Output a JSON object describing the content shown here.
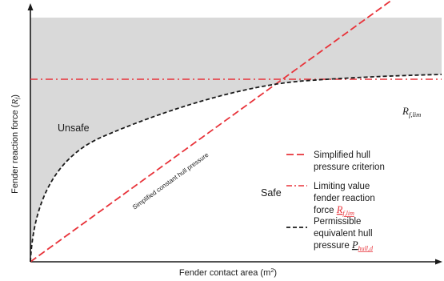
{
  "figure": {
    "x_axis_label": "Fender contact area (m",
    "x_axis_label_sup": "2",
    "x_axis_label_end": ")",
    "y_axis_label": "Fender reaction force (",
    "y_axis_label_var": "R",
    "y_axis_label_sub": "f",
    "y_axis_label_end": ")",
    "region_unsafe": "Unsafe",
    "region_safe": "Safe",
    "diagonal_annotation": "Simplified constant hull pressure",
    "limit_marker_var": "R",
    "limit_marker_sub": "f,lim",
    "legend": [
      {
        "line1": "Simplified hull",
        "line2": "pressure criterion",
        "line3": "",
        "var": "",
        "sub": "",
        "style": "dashed"
      },
      {
        "line1": "Limiting value",
        "line2": "fender reaction",
        "line3": "force ",
        "var": "R",
        "sub": "f,lim",
        "style": "dashdot"
      },
      {
        "line1": "Permissible",
        "line2": "equivalent hull",
        "line3": "pressure ",
        "var": "P",
        "sub": "hull,d",
        "style": "black-dashed"
      }
    ]
  },
  "colors": {
    "unsafe_fill": "#d9d9d9",
    "red_line": "#e8333a",
    "black_line": "#1a1a1a",
    "axis": "#1a1a1a"
  }
}
